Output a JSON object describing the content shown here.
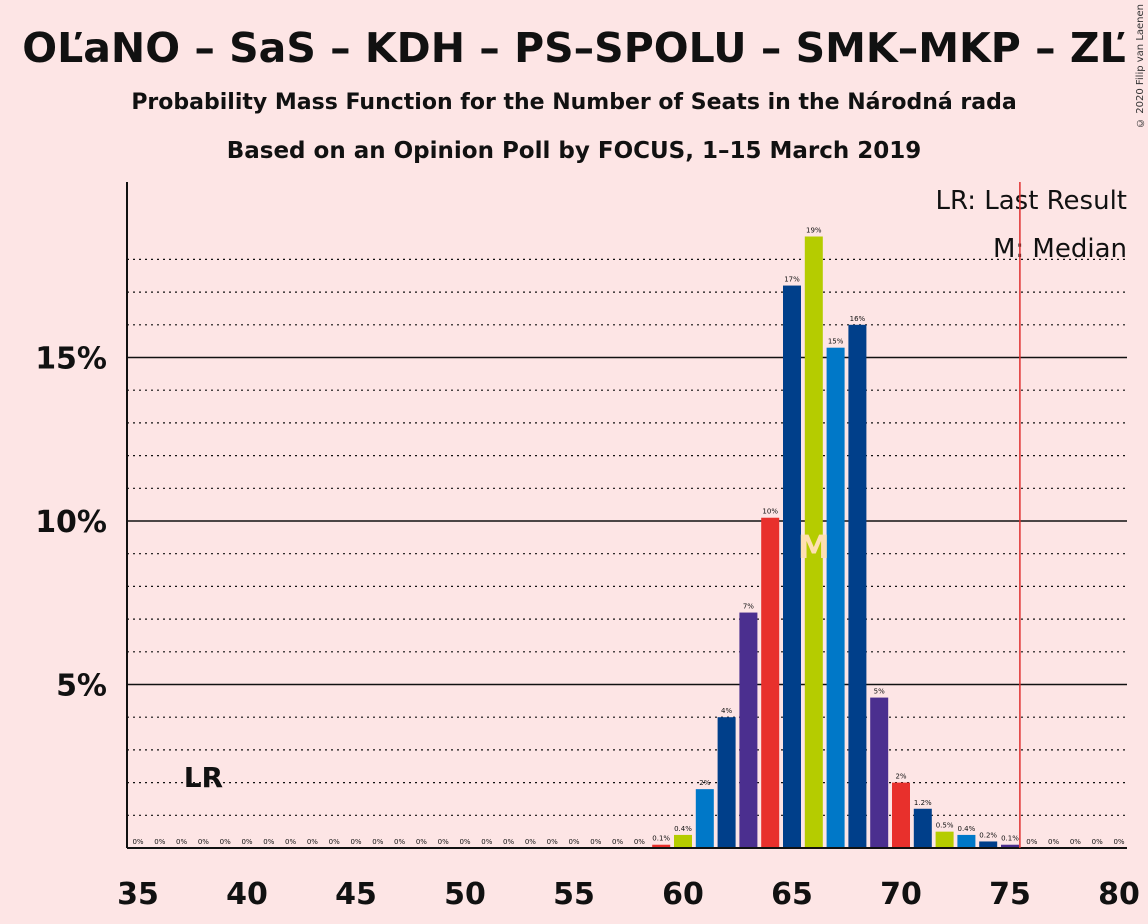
{
  "header": {
    "title": "OĽaNO – SaS – KDH – PS–SPOLU – SMK–MKP – ZĽ",
    "subtitle": "Probability Mass Function for the Number of Seats in the Národná rada",
    "poll_info": "Based on an Opinion Poll by FOCUS, 1–15 March 2019",
    "copyright": "© 2020 Filip van Laenen"
  },
  "legend": {
    "last_result": "LR: Last Result",
    "median": "M: Median"
  },
  "markers": {
    "lr_label": "LR",
    "lr_seat": 38,
    "median_label": "M",
    "median_seat": 66,
    "majority_line_seat": 76
  },
  "colors": {
    "background": "#fde5e5",
    "majority_line": "#e03030",
    "bar_palette": [
      "#0078c8",
      "#003f8a",
      "#4b2f8f",
      "#e8302c",
      "#b5cc00"
    ]
  },
  "chart_data": {
    "type": "bar",
    "title": "Probability Mass Function for the Number of Seats in the Národná rada",
    "xlim": [
      35,
      80
    ],
    "ylim": [
      0,
      20
    ],
    "x_ticks": [
      35,
      40,
      45,
      50,
      55,
      60,
      65,
      70,
      75,
      80
    ],
    "x_tick_labels": [
      "35",
      "40",
      "45",
      "50",
      "55",
      "60",
      "65",
      "70",
      "75",
      "80"
    ],
    "y_ticks": [
      5,
      10,
      15
    ],
    "y_tick_labels": [
      "5%",
      "10%",
      "15%"
    ],
    "grid": "dotted every 1%, solid every 5%",
    "legend_position": "top-right",
    "categories": [
      35,
      36,
      37,
      38,
      39,
      40,
      41,
      42,
      43,
      44,
      45,
      46,
      47,
      48,
      49,
      50,
      51,
      52,
      53,
      54,
      55,
      56,
      57,
      58,
      59,
      60,
      61,
      62,
      63,
      64,
      65,
      66,
      67,
      68,
      69,
      70,
      71,
      72,
      73,
      74,
      75,
      76,
      77,
      78,
      79,
      80
    ],
    "values": [
      0,
      0,
      0,
      0,
      0,
      0,
      0,
      0,
      0,
      0,
      0,
      0,
      0,
      0,
      0,
      0,
      0,
      0,
      0,
      0,
      0,
      0,
      0,
      0,
      0.1,
      0.4,
      1.8,
      4.0,
      7.2,
      10.1,
      17.2,
      18.7,
      15.3,
      16.0,
      4.6,
      2.0,
      1.2,
      0.5,
      0.4,
      0.2,
      0.1,
      0,
      0,
      0,
      0,
      0
    ],
    "labels": [
      "0%",
      "0%",
      "0%",
      "0%",
      "0%",
      "0%",
      "0%",
      "0%",
      "0%",
      "0%",
      "0%",
      "0%",
      "0%",
      "0%",
      "0%",
      "0%",
      "0%",
      "0%",
      "0%",
      "0%",
      "0%",
      "0%",
      "0%",
      "0%",
      "0.1%",
      "0.4%",
      "2%",
      "4%",
      "7%",
      "10%",
      "17%",
      "19%",
      "15%",
      "16%",
      "5%",
      "2%",
      "1.2%",
      "0.5%",
      "0.4%",
      "0.2%",
      "0.1%",
      "0%",
      "0%",
      "0%",
      "0%",
      "0%"
    ],
    "bar_colors": [
      "#0078c8",
      "#003f8a",
      "#4b2f8f",
      "#e8302c",
      "#b5cc00",
      "#0078c8",
      "#003f8a",
      "#4b2f8f",
      "#e8302c",
      "#b5cc00",
      "#0078c8",
      "#003f8a",
      "#4b2f8f",
      "#e8302c",
      "#b5cc00",
      "#0078c8",
      "#003f8a",
      "#4b2f8f",
      "#e8302c",
      "#b5cc00",
      "#0078c8",
      "#003f8a",
      "#4b2f8f",
      "#e8302c",
      "#e8302c",
      "#b5cc00",
      "#0078c8",
      "#003f8a",
      "#4b2f8f",
      "#e8302c",
      "#003f8a",
      "#b5cc00",
      "#0078c8",
      "#003f8a",
      "#4b2f8f",
      "#e8302c",
      "#003f8a",
      "#b5cc00",
      "#0078c8",
      "#003f8a",
      "#4b2f8f",
      "#e8302c",
      "#b5cc00",
      "#0078c8",
      "#003f8a",
      "#4b2f8f"
    ]
  }
}
